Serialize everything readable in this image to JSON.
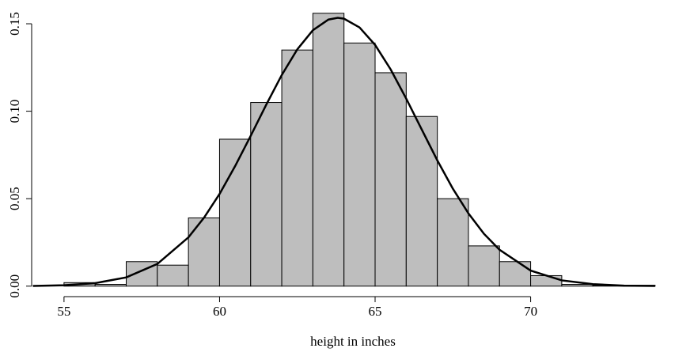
{
  "chart_data": {
    "type": "histogram",
    "xlabel": "height in inches",
    "bins": [
      55,
      56,
      57,
      58,
      59,
      60,
      61,
      62,
      63,
      64,
      65,
      66,
      67,
      68,
      69,
      70,
      71,
      72,
      73,
      74
    ],
    "values": [
      0.002,
      0.001,
      0.014,
      0.012,
      0.039,
      0.084,
      0.105,
      0.135,
      0.156,
      0.139,
      0.122,
      0.097,
      0.05,
      0.023,
      0.014,
      0.006,
      0.001,
      0.0005,
      0.0005
    ],
    "color": "#bebebe",
    "curve": {
      "color": "#000000",
      "x": [
        54,
        55,
        56,
        57,
        58,
        59,
        59.5,
        60,
        60.5,
        61,
        61.5,
        62,
        62.5,
        63,
        63.5,
        63.8,
        64,
        64.5,
        65,
        65.5,
        66,
        66.5,
        67,
        67.5,
        68,
        68.5,
        69,
        70,
        71,
        72,
        73,
        74
      ],
      "values": [
        0.0001,
        0.0005,
        0.0017,
        0.005,
        0.0127,
        0.0279,
        0.0391,
        0.0527,
        0.0686,
        0.0859,
        0.1037,
        0.1207,
        0.1354,
        0.1463,
        0.1524,
        0.1534,
        0.1529,
        0.1479,
        0.1379,
        0.1239,
        0.1072,
        0.0895,
        0.0719,
        0.0557,
        0.0416,
        0.0299,
        0.0208,
        0.0089,
        0.0033,
        0.0011,
        0.0003,
        0.0001
      ]
    },
    "xlim": [
      54.24,
      74.64
    ],
    "ylim": [
      -0.006,
      0.162
    ],
    "xticks": [
      55,
      60,
      65,
      70
    ],
    "yticks": [
      {
        "value": 0,
        "label": "0.00"
      },
      {
        "value": 0.05,
        "label": "0.05"
      },
      {
        "value": 0.1,
        "label": "0.10"
      },
      {
        "value": 0.15,
        "label": "0.15"
      }
    ]
  }
}
